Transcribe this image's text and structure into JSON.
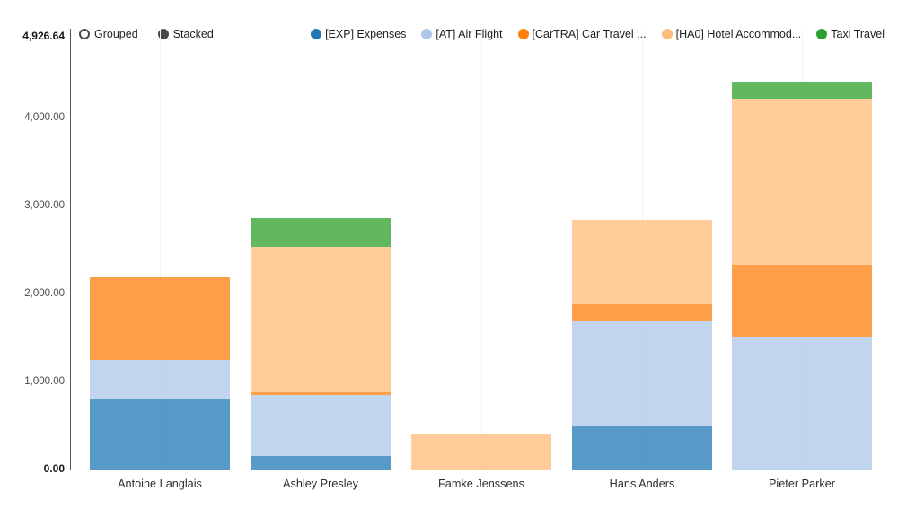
{
  "controls": {
    "grouped_label": "Grouped",
    "stacked_label": "Stacked",
    "selected_mode": "Stacked"
  },
  "legend": [
    {
      "label": "[EXP] Expenses",
      "color": "#1f77b4"
    },
    {
      "label": "[AT] Air Flight",
      "color": "#aec7e8"
    },
    {
      "label": "[CarTRA] Car Travel ...",
      "color": "#ff7f0e"
    },
    {
      "label": "[HA0] Hotel Accommod...",
      "color": "#ffbb78"
    },
    {
      "label": "Taxi Travel",
      "color": "#2ca02c"
    }
  ],
  "chart_data": {
    "type": "bar",
    "stacked": true,
    "grid": true,
    "legend_position": "top-right",
    "bar_opacity": 0.75,
    "categories": [
      "Antoine Langlais",
      "Ashley Presley",
      "Famke Jenssens",
      "Hans Anders",
      "Pieter Parker"
    ],
    "series": [
      {
        "name": "[EXP] Expenses",
        "color": "#1f77b4",
        "values": [
          806,
          150,
          0,
          490,
          0
        ]
      },
      {
        "name": "[AT] Air Flight",
        "color": "#aec7e8",
        "values": [
          438,
          700,
          0,
          1193,
          1510
        ]
      },
      {
        "name": "[CarTRA] Car Travel ...",
        "color": "#ff7f0e",
        "values": [
          938,
          31,
          0,
          194,
          816
        ]
      },
      {
        "name": "[HA0] Hotel Accommod...",
        "color": "#ffbb78",
        "values": [
          0,
          1652,
          408,
          959,
          1887
        ]
      },
      {
        "name": "Taxi Travel",
        "color": "#2ca02c",
        "values": [
          0,
          326,
          0,
          0,
          194
        ]
      }
    ],
    "totals": [
      2182,
      2859,
      408,
      2836,
      4407
    ],
    "y_axis": {
      "max_label": "4,926.64",
      "max_value": 4926.64,
      "min_label": "0.00",
      "min_value": 0,
      "ticks": [
        {
          "label": "4,000.00",
          "value": 4000
        },
        {
          "label": "3,000.00",
          "value": 3000
        },
        {
          "label": "2,000.00",
          "value": 2000
        },
        {
          "label": "1,000.00",
          "value": 1000
        }
      ]
    },
    "x_axis": {
      "label": "",
      "tick_labels": [
        "Antoine Langlais",
        "Ashley Presley",
        "Famke Jenssens",
        "Hans Anders",
        "Pieter Parker"
      ]
    },
    "title": ""
  }
}
